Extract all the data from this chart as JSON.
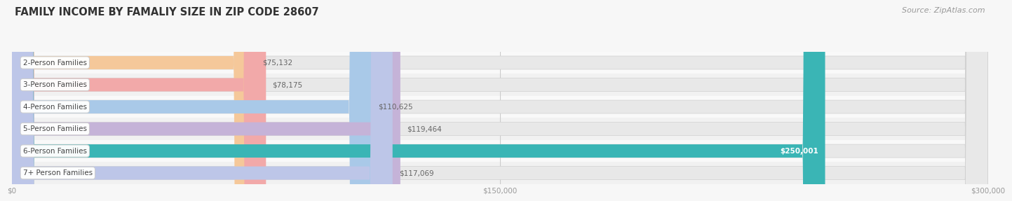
{
  "title": "FAMILY INCOME BY FAMALIY SIZE IN ZIP CODE 28607",
  "source": "Source: ZipAtlas.com",
  "categories": [
    "2-Person Families",
    "3-Person Families",
    "4-Person Families",
    "5-Person Families",
    "6-Person Families",
    "7+ Person Families"
  ],
  "values": [
    75132,
    78175,
    110625,
    119464,
    250001,
    117069
  ],
  "bar_colors": [
    "#f5c89a",
    "#f2a9a9",
    "#a9c9e8",
    "#c5b3d8",
    "#3ab5b5",
    "#bdc6e8"
  ],
  "label_colors": [
    "#555555",
    "#555555",
    "#555555",
    "#555555",
    "#ffffff",
    "#555555"
  ],
  "value_labels": [
    "$75,132",
    "$78,175",
    "$110,625",
    "$119,464",
    "$250,001",
    "$117,069"
  ],
  "xlim": [
    0,
    300000
  ],
  "xticks": [
    0,
    150000,
    300000
  ],
  "xtick_labels": [
    "$0",
    "$150,000",
    "$300,000"
  ],
  "background_color": "#f7f7f7",
  "track_color": "#e8e8e8",
  "title_fontsize": 10.5,
  "source_fontsize": 8,
  "label_fontsize": 7.5,
  "value_fontsize": 7.5,
  "bar_height": 0.6
}
